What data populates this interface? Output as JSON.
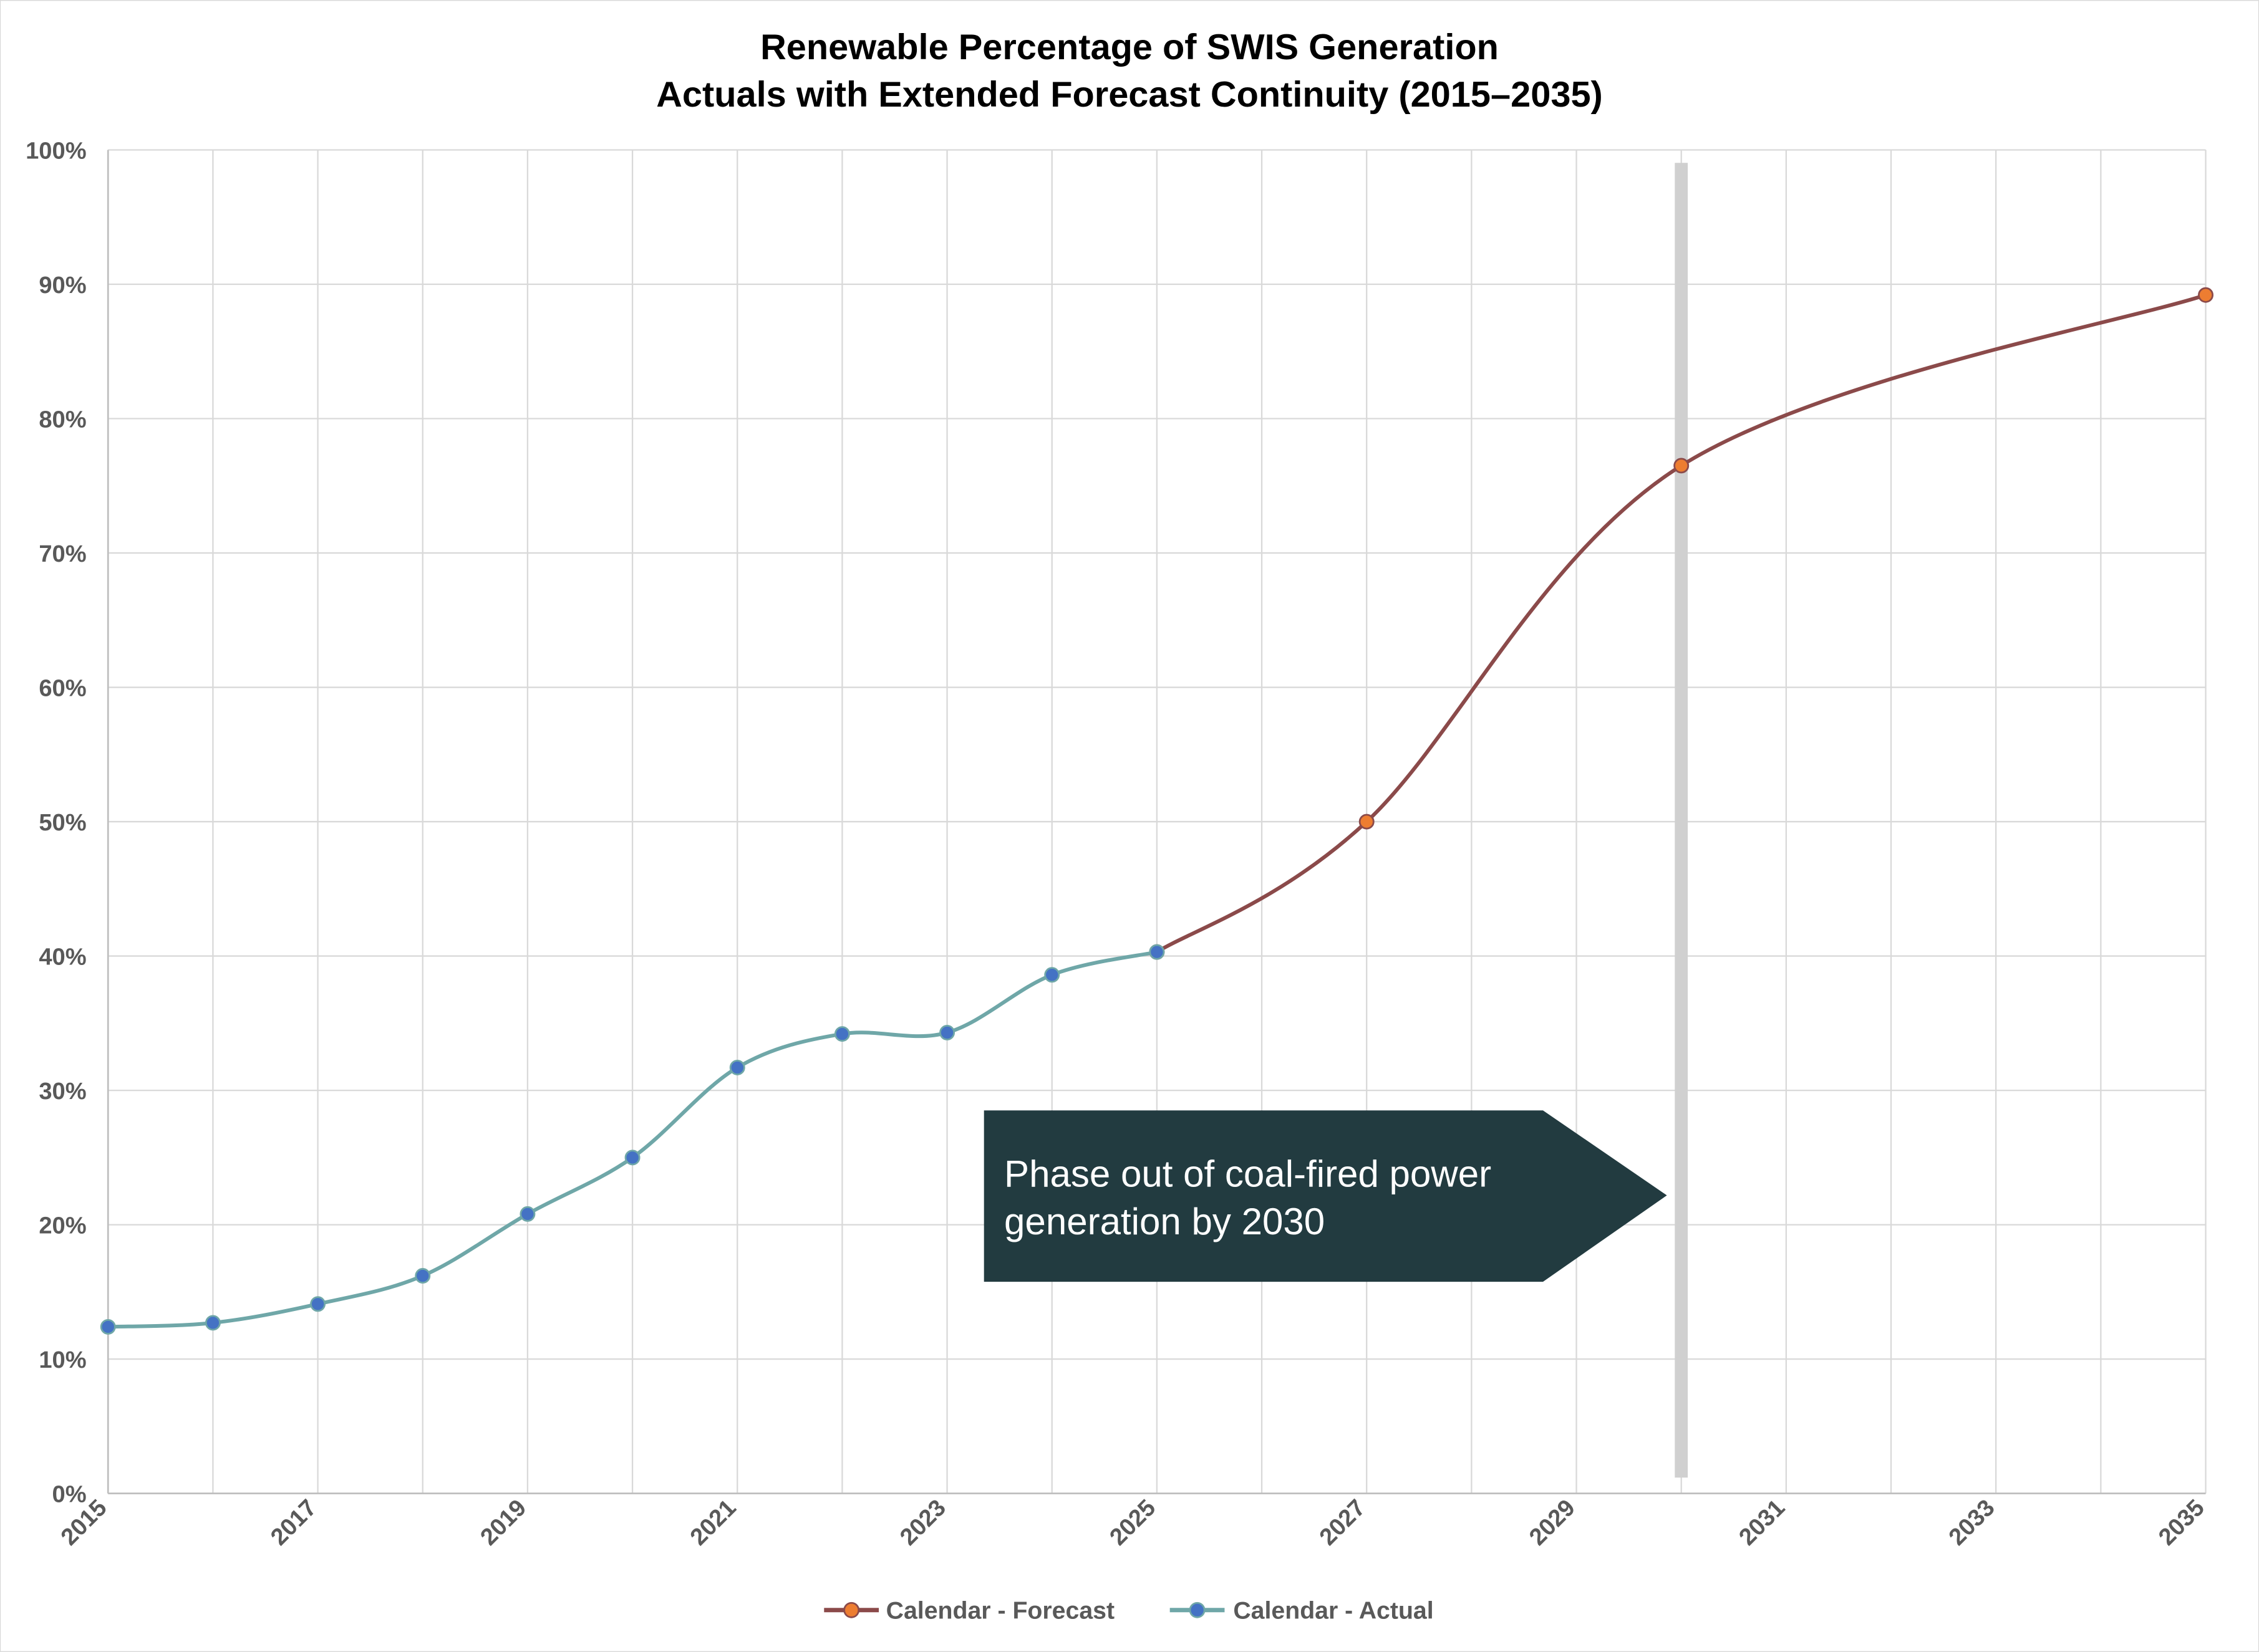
{
  "chart_data": {
    "type": "line",
    "title": [
      "Renewable Percentage of SWIS Generation",
      "Actuals with Extended Forecast Continuity (2015–2035)"
    ],
    "xlabel": "",
    "ylabel": "",
    "xlim": [
      2015,
      2035
    ],
    "ylim": [
      0,
      100
    ],
    "x_ticks": [
      "2015",
      "2017",
      "2019",
      "2021",
      "2023",
      "2025",
      "2027",
      "2029",
      "2031",
      "2033",
      "2035"
    ],
    "y_ticks": [
      "0%",
      "10%",
      "20%",
      "30%",
      "40%",
      "50%",
      "60%",
      "70%",
      "80%",
      "90%",
      "100%"
    ],
    "grid": true,
    "legend_position": "bottom",
    "series": [
      {
        "name": "Calendar - Forecast",
        "line_color": "#8B4A4A",
        "marker_color": "#ED7D31",
        "x": [
          2025,
          2027,
          2030,
          2035
        ],
        "values": [
          40.3,
          50.0,
          76.5,
          89.2
        ]
      },
      {
        "name": "Calendar - Actual",
        "line_color": "#6FA7A8",
        "marker_color": "#4472C4",
        "x": [
          2015,
          2016,
          2017,
          2018,
          2019,
          2020,
          2021,
          2022,
          2023,
          2024,
          2025
        ],
        "values": [
          12.4,
          12.7,
          14.1,
          16.2,
          20.8,
          25.0,
          31.7,
          34.2,
          34.3,
          38.6,
          40.3
        ]
      }
    ],
    "reference_line": {
      "x": 2030,
      "color": "#D0D0D0"
    },
    "annotation": {
      "lines": [
        "Phase out of coal-fired power",
        "generation by 2030"
      ],
      "color": "#223B40"
    }
  }
}
